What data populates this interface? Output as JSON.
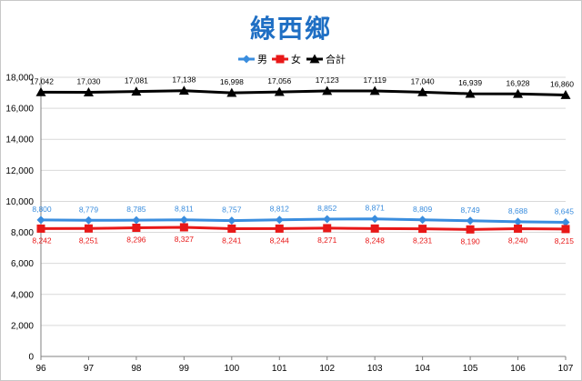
{
  "title": "線西鄉",
  "chart_data": {
    "type": "line",
    "title": "線西鄉",
    "categories": [
      "96",
      "97",
      "98",
      "99",
      "100",
      "101",
      "102",
      "103",
      "104",
      "105",
      "106",
      "107"
    ],
    "ylim": [
      0,
      18000
    ],
    "yticks": [
      0,
      2000,
      4000,
      6000,
      8000,
      10000,
      12000,
      14000,
      16000,
      18000
    ],
    "ytick_labels": [
      "0",
      "2,000",
      "4,000",
      "6,000",
      "8,000",
      "10,000",
      "12,000",
      "14,000",
      "16,000",
      "18,000"
    ],
    "grid": true,
    "legend_position": "top",
    "series": [
      {
        "name": "男",
        "color": "#3a8dde",
        "marker": "diamond",
        "values": [
          8800,
          8779,
          8785,
          8811,
          8757,
          8812,
          8852,
          8871,
          8809,
          8749,
          8688,
          8645
        ],
        "labels": [
          "8,800",
          "8,779",
          "8,785",
          "8,811",
          "8,757",
          "8,812",
          "8,852",
          "8,871",
          "8,809",
          "8,749",
          "8,688",
          "8,645"
        ],
        "label_pos": "above"
      },
      {
        "name": "女",
        "color": "#e81818",
        "marker": "square",
        "values": [
          8242,
          8251,
          8296,
          8327,
          8241,
          8244,
          8271,
          8248,
          8231,
          8190,
          8240,
          8215
        ],
        "labels": [
          "8,242",
          "8,251",
          "8,296",
          "8,327",
          "8,241",
          "8,244",
          "8,271",
          "8,248",
          "8,231",
          "8,190",
          "8,240",
          "8,215"
        ],
        "label_pos": "below"
      },
      {
        "name": "合計",
        "color": "#000000",
        "marker": "triangle",
        "values": [
          17042,
          17030,
          17081,
          17138,
          16998,
          17056,
          17123,
          17119,
          17040,
          16939,
          16928,
          16860
        ],
        "labels": [
          "17,042",
          "17,030",
          "17,081",
          "17,138",
          "16,998",
          "17,056",
          "17,123",
          "17,119",
          "17,040",
          "16,939",
          "16,928",
          "16,860"
        ],
        "label_pos": "above"
      }
    ]
  }
}
